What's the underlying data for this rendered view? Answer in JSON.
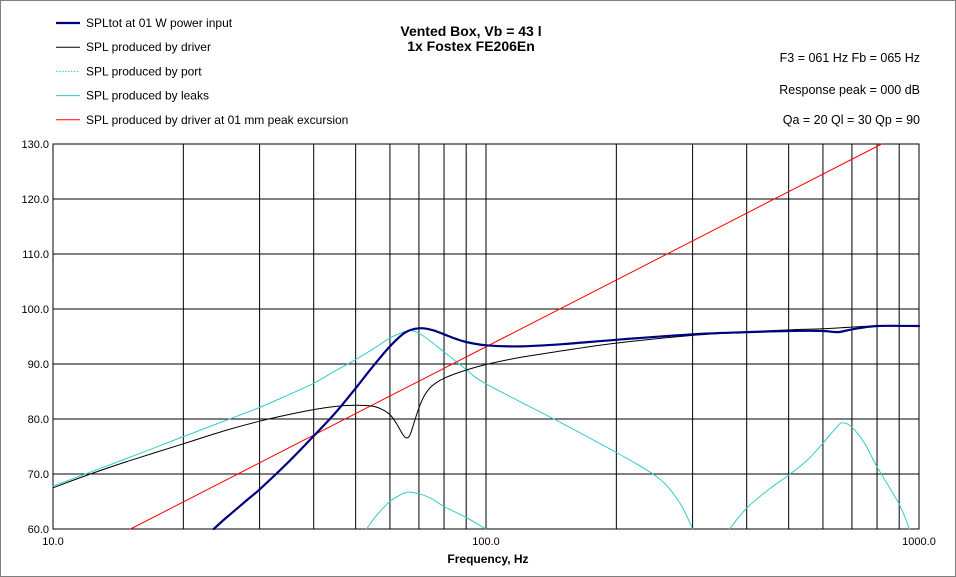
{
  "chart_data": {
    "type": "line",
    "title": "Vented Box, Vb = 43 l",
    "subtitle": "1x Fostex FE206En",
    "xlabel": "Frequency, Hz",
    "ylabel": "",
    "xscale": "log",
    "xlim": [
      10,
      1000
    ],
    "ylim": [
      60,
      130
    ],
    "grid": true,
    "legend_position": "top-left",
    "x_tick_labels": [
      "10.0",
      "100.0",
      "1000.0"
    ],
    "y_tick_labels": [
      "60.0",
      "70.0",
      "80.0",
      "90.0",
      "100.0",
      "110.0",
      "120.0",
      "130.0"
    ],
    "info_lines": [
      "F3 = 061 Hz  Fb = 065 Hz",
      "Response peak = 000 dB",
      "Qa = 20  Ql = 30  Qp = 90"
    ],
    "series": [
      {
        "name": "SPLtot at 01 W power input",
        "color": "#000080",
        "points": [
          [
            23.5,
            60
          ],
          [
            25,
            61.9
          ],
          [
            28,
            65.2
          ],
          [
            30,
            67.2
          ],
          [
            35,
            72.2
          ],
          [
            40,
            76.9
          ],
          [
            45,
            81.2
          ],
          [
            50,
            85.6
          ],
          [
            55,
            89.7
          ],
          [
            60,
            93.2
          ],
          [
            65,
            95.7
          ],
          [
            70,
            96.5
          ],
          [
            75,
            96.2
          ],
          [
            80,
            95.4
          ],
          [
            85,
            94.6
          ],
          [
            90,
            94
          ],
          [
            100,
            93.4
          ],
          [
            120,
            93.2
          ],
          [
            150,
            93.6
          ],
          [
            200,
            94.4
          ],
          [
            300,
            95.4
          ],
          [
            400,
            95.8
          ],
          [
            500,
            96
          ],
          [
            600,
            96
          ],
          [
            650,
            95.8
          ],
          [
            700,
            96.3
          ],
          [
            800,
            96.9
          ],
          [
            1000,
            96.9
          ]
        ]
      },
      {
        "name": "SPL produced by driver",
        "color": "#000000",
        "points": [
          [
            10,
            67.5
          ],
          [
            12,
            69.8
          ],
          [
            15,
            72.4
          ],
          [
            20,
            75.5
          ],
          [
            25,
            77.9
          ],
          [
            30,
            79.6
          ],
          [
            35,
            80.8
          ],
          [
            40,
            81.7
          ],
          [
            45,
            82.3
          ],
          [
            50,
            82.5
          ],
          [
            55,
            82.3
          ],
          [
            58,
            81.6
          ],
          [
            60,
            80.8
          ],
          [
            62,
            79.3
          ],
          [
            64,
            77.4
          ],
          [
            65,
            76.7
          ],
          [
            66,
            76.6
          ],
          [
            67,
            77.4
          ],
          [
            68,
            79
          ],
          [
            70,
            82
          ],
          [
            72,
            84.2
          ],
          [
            75,
            86
          ],
          [
            80,
            87.4
          ],
          [
            90,
            88.9
          ],
          [
            100,
            89.9
          ],
          [
            120,
            91.2
          ],
          [
            150,
            92.4
          ],
          [
            200,
            93.8
          ],
          [
            300,
            95.2
          ],
          [
            400,
            95.8
          ],
          [
            500,
            96.2
          ],
          [
            600,
            96.4
          ],
          [
            700,
            96.7
          ],
          [
            800,
            96.9
          ],
          [
            1000,
            96.9
          ]
        ]
      },
      {
        "name": "SPL produced by port",
        "color": "#33cccc",
        "points": [
          [
            53,
            60
          ],
          [
            55,
            61.8
          ],
          [
            58,
            63.9
          ],
          [
            60,
            65
          ],
          [
            63,
            66.1
          ],
          [
            66,
            66.7
          ],
          [
            70,
            66.4
          ],
          [
            75,
            65.5
          ],
          [
            80,
            64.1
          ],
          [
            90,
            62.1
          ],
          [
            100,
            60
          ]
        ]
      },
      {
        "name": "SPL produced by leaks",
        "color": "#33cccc",
        "points": [
          [
            10,
            67.8
          ],
          [
            15,
            73
          ],
          [
            20,
            76.8
          ],
          [
            25,
            79.7
          ],
          [
            30,
            82.1
          ],
          [
            35,
            84.4
          ],
          [
            40,
            86.5
          ],
          [
            45,
            88.8
          ],
          [
            50,
            90.8
          ],
          [
            55,
            92.8
          ],
          [
            60,
            94.7
          ],
          [
            65,
            95.9
          ],
          [
            68,
            96
          ],
          [
            72,
            95
          ],
          [
            80,
            92.2
          ],
          [
            90,
            89
          ],
          [
            100,
            86.4
          ],
          [
            150,
            79.2
          ],
          [
            200,
            73.9
          ],
          [
            250,
            69.3
          ],
          [
            280,
            64.8
          ],
          [
            300,
            60
          ]
        ]
      },
      {
        "name": "SPL produced by leaks (high band)",
        "color": "#33cccc",
        "points": [
          [
            365,
            60
          ],
          [
            400,
            63.8
          ],
          [
            450,
            67.2
          ],
          [
            500,
            69.8
          ],
          [
            550,
            72.4
          ],
          [
            600,
            75.6
          ],
          [
            650,
            78.8
          ],
          [
            670,
            79.3
          ],
          [
            700,
            78.5
          ],
          [
            750,
            75.5
          ],
          [
            800,
            71.3
          ],
          [
            900,
            64.5
          ],
          [
            950,
            60
          ]
        ]
      },
      {
        "name": "SPL produced by driver at 01 mm peak excursion",
        "color": "#ff0000",
        "points": [
          [
            15.1,
            60
          ],
          [
            820,
            130
          ]
        ]
      }
    ]
  },
  "legend": [
    {
      "label": "SPLtot at 01 W power input",
      "color": "#000080",
      "weight": "thick"
    },
    {
      "label": "SPL produced by driver",
      "color": "#000000",
      "weight": "thin"
    },
    {
      "label": "SPL produced by port",
      "color": "#33cccc",
      "weight": "dotted"
    },
    {
      "label": "SPL produced by leaks",
      "color": "#33cccc",
      "weight": "thin"
    },
    {
      "label": "SPL produced by driver at 01 mm peak excursion",
      "color": "#ff0000",
      "weight": "thin"
    }
  ]
}
